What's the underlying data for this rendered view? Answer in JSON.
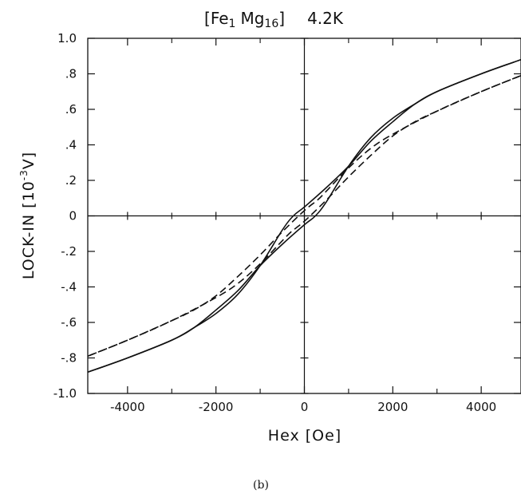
{
  "chart_data": {
    "type": "line",
    "title": {
      "bracket_open": "[",
      "fe": "Fe",
      "fe_sub": "1",
      "mg": "Mg",
      "mg_sub": "16",
      "bracket_close": "]",
      "temperature": "4.2K"
    },
    "xlabel": "Hex [Oe]",
    "ylabel": {
      "prefix": "LOCK-IN [10",
      "exponent": "-3",
      "suffix": "V]"
    },
    "caption": "(b)",
    "xlim": [
      -4900,
      4900
    ],
    "ylim": [
      -1.0,
      1.0
    ],
    "x_ticks": [
      {
        "value": -4000,
        "label": "-4000"
      },
      {
        "value": -2000,
        "label": "-2000"
      },
      {
        "value": 0,
        "label": "0"
      },
      {
        "value": 2000,
        "label": "2000"
      },
      {
        "value": 4000,
        "label": "4000"
      }
    ],
    "y_ticks": [
      {
        "value": 1.0,
        "label": "1.0"
      },
      {
        "value": 0.8,
        "label": ".8"
      },
      {
        "value": 0.6,
        "label": ".6"
      },
      {
        "value": 0.4,
        "label": ".4"
      },
      {
        "value": 0.2,
        "label": ".2"
      },
      {
        "value": 0.0,
        "label": "0"
      },
      {
        "value": -0.2,
        "label": "-.2"
      },
      {
        "value": -0.4,
        "label": "-.4"
      },
      {
        "value": -0.6,
        "label": "-.6"
      },
      {
        "value": -0.8,
        "label": "-.8"
      },
      {
        "value": -1.0,
        "label": "-1.0"
      }
    ],
    "grid": false,
    "colors": {
      "line": "#111111",
      "background": "#ffffff"
    },
    "series": [
      {
        "style": "solid",
        "x": [
          -4900,
          -4000,
          -3000,
          -2500,
          -2000,
          -1500,
          -1000,
          -500,
          0,
          250,
          500,
          1000,
          1500,
          2000,
          2500,
          3000,
          4000,
          4900
        ],
        "y": [
          -0.88,
          -0.8,
          -0.7,
          -0.63,
          -0.53,
          -0.42,
          -0.28,
          -0.16,
          -0.05,
          0.0,
          0.08,
          0.28,
          0.44,
          0.55,
          0.63,
          0.7,
          0.8,
          0.88
        ]
      },
      {
        "style": "solid",
        "x": [
          4900,
          4000,
          3000,
          2500,
          2000,
          1500,
          1000,
          500,
          0,
          -250,
          -500,
          -1000,
          -1500,
          -2000,
          -2500,
          -3000,
          -4000,
          -4900
        ],
        "y": [
          0.88,
          0.8,
          0.7,
          0.63,
          0.53,
          0.42,
          0.28,
          0.16,
          0.05,
          0.0,
          -0.08,
          -0.28,
          -0.44,
          -0.55,
          -0.63,
          -0.7,
          -0.8,
          -0.88
        ]
      },
      {
        "style": "dashed",
        "x": [
          -4900,
          -4000,
          -3000,
          -2000,
          -1500,
          -1000,
          -500,
          -300,
          0,
          500,
          1000,
          1500,
          2000,
          2500,
          3000,
          4000,
          4900
        ],
        "y": [
          -0.79,
          -0.7,
          -0.59,
          -0.46,
          -0.38,
          -0.27,
          -0.14,
          -0.09,
          -0.03,
          0.09,
          0.22,
          0.34,
          0.45,
          0.53,
          0.59,
          0.7,
          0.79
        ]
      },
      {
        "style": "dashed",
        "x": [
          4900,
          4000,
          3000,
          2000,
          1500,
          1000,
          500,
          300,
          0,
          -500,
          -1000,
          -1500,
          -2000,
          -2500,
          -3000,
          -4000,
          -4900
        ],
        "y": [
          0.79,
          0.7,
          0.59,
          0.46,
          0.38,
          0.27,
          0.14,
          0.09,
          0.03,
          -0.09,
          -0.22,
          -0.34,
          -0.45,
          -0.53,
          -0.59,
          -0.7,
          -0.79
        ]
      }
    ]
  }
}
